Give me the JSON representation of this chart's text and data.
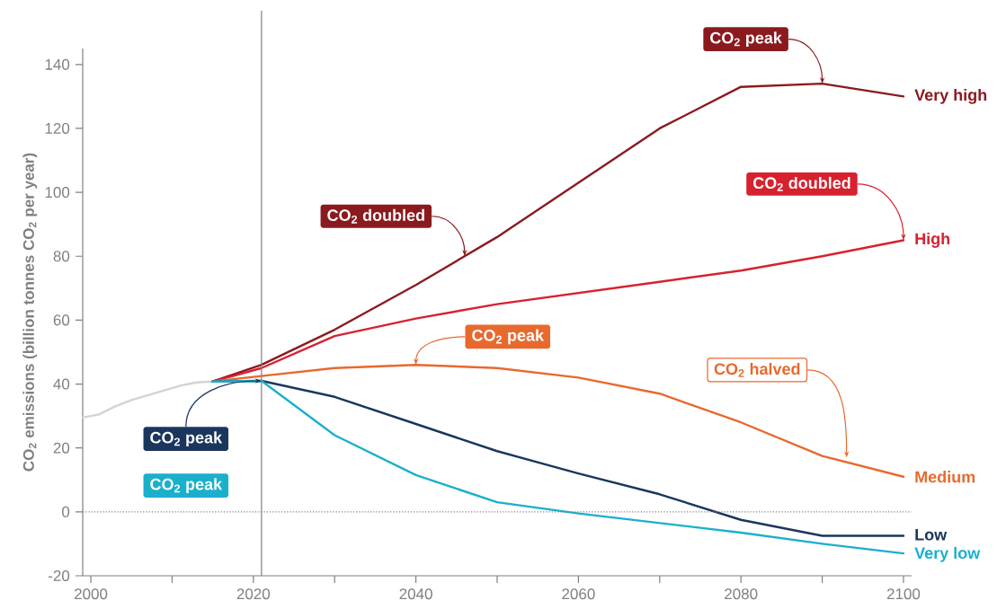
{
  "chart_data": {
    "type": "line",
    "ylabel": "CO$_{2}$ emissions (billion tonnes CO$_{2}$ per year)",
    "xlim": [
      1999,
      2101
    ],
    "ylim": [
      -20,
      145
    ],
    "xticks": [
      2000,
      {
        "value": 2010,
        "label": null
      },
      2020,
      {
        "value": 2030,
        "label": null
      },
      2040,
      {
        "value": 2050,
        "label": null
      },
      2060,
      {
        "value": 2070,
        "label": null
      },
      2080,
      {
        "value": 2090,
        "label": null
      },
      2100
    ],
    "yticks": [
      -20,
      0,
      20,
      40,
      60,
      80,
      100,
      120,
      140
    ],
    "grid": false,
    "legend": "right",
    "marker": "none",
    "line_style": "solid",
    "series": [
      {
        "color": "#d3d3d3",
        "x": [
          1999,
          2001,
          2003,
          2005,
          2007,
          2009,
          2011,
          2013,
          2015
        ],
        "values": [
          29.5,
          30.5,
          33,
          35,
          36.5,
          38,
          39.5,
          40.5,
          40.8
        ]
      },
      {
        "name": "Very high",
        "color": "#8b1a1f",
        "x": [
          2015,
          2021,
          2030,
          2040,
          2050,
          2060,
          2070,
          2080,
          2090,
          2100
        ],
        "values": [
          40.8,
          46,
          57,
          71,
          86,
          103,
          120,
          133,
          134,
          130
        ]
      },
      {
        "name": "High",
        "color": "#d7212f",
        "x": [
          2015,
          2021,
          2030,
          2040,
          2050,
          2060,
          2070,
          2080,
          2090,
          2100
        ],
        "values": [
          40.8,
          45,
          55,
          60.5,
          65,
          68.5,
          72,
          75.5,
          80,
          85
        ]
      },
      {
        "name": "Medium",
        "color": "#e8692d",
        "x": [
          2015,
          2021,
          2030,
          2040,
          2050,
          2060,
          2070,
          2080,
          2090,
          2100
        ],
        "values": [
          40.8,
          42.5,
          45,
          46,
          45,
          42,
          37,
          28,
          17.5,
          11
        ]
      },
      {
        "name": "Low",
        "color": "#1b365d",
        "x": [
          2015,
          2021,
          2030,
          2040,
          2050,
          2060,
          2070,
          2080,
          2090,
          2100
        ],
        "values": [
          40.8,
          41,
          36,
          27.5,
          19,
          12,
          5.5,
          -2.5,
          -7.5,
          -7.5
        ]
      },
      {
        "name": "Very low",
        "color": "#1ab0cc",
        "x": [
          2015,
          2021,
          2030,
          2040,
          2050,
          2060,
          2070,
          2080,
          2090,
          2100
        ],
        "values": [
          40.8,
          41,
          24,
          11.5,
          3,
          -0.5,
          -3.5,
          -6.5,
          -10,
          -13
        ]
      }
    ],
    "ref_lines": [
      {
        "axis": "y",
        "value": 0,
        "color": "#808080",
        "line_style": "dotted"
      },
      {
        "axis": "x",
        "value": 2021,
        "color": "#808080",
        "line_style": "solid"
      }
    ],
    "annotations": [
      {
        "text": "CO$_{2}$ doubled",
        "x": 2046,
        "y": 80
      },
      {
        "text": "CO$_{2}$ peak",
        "x": 2090,
        "y": 134
      },
      {
        "text": "CO$_{2}$ doubled",
        "x": 2100,
        "y": 85
      },
      {
        "text": "CO$_{2}$ peak",
        "x": 2040,
        "y": 46
      },
      {
        "text": "CO$_{2}$ halved",
        "x": 2093,
        "y": 17
      },
      {
        "text": "CO$_{2}$ peak",
        "x": 2021,
        "y": 41
      },
      "CO$_{2}$ peak"
    ]
  }
}
